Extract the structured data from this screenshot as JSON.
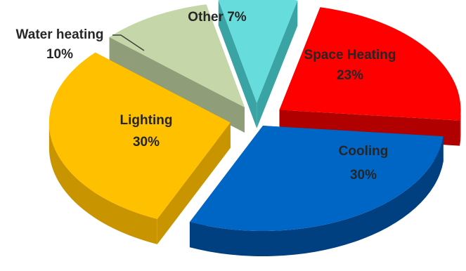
{
  "chart_data": {
    "type": "pie",
    "style": "3d-exploded",
    "slices": [
      {
        "name": "Space Heating",
        "value": 23,
        "value_label": "23%",
        "color": "#ff0000",
        "side_color": "#b00000"
      },
      {
        "name": "Cooling",
        "value": 30,
        "value_label": "30%",
        "color": "#0066c6",
        "side_color": "#004080"
      },
      {
        "name": "Lighting",
        "value": 30,
        "value_label": "30%",
        "color": "#ffc000",
        "side_color": "#c89400"
      },
      {
        "name": "Water heating",
        "value": 10,
        "value_label": "10%",
        "color": "#c5d7a8",
        "side_color": "#8f9e78"
      },
      {
        "name": "Other",
        "value": 7,
        "value_label": "7%",
        "color": "#66dcdc",
        "side_color": "#3aa4a4"
      }
    ],
    "labels": [
      {
        "text": "Space Heating",
        "sub": "23%"
      },
      {
        "text": "Cooling",
        "sub": "30%"
      },
      {
        "text": "Lighting",
        "sub": "30%"
      },
      {
        "text": "Water heating",
        "sub": "10%"
      },
      {
        "text": "Other 7%"
      }
    ],
    "label_color": "#262626"
  }
}
